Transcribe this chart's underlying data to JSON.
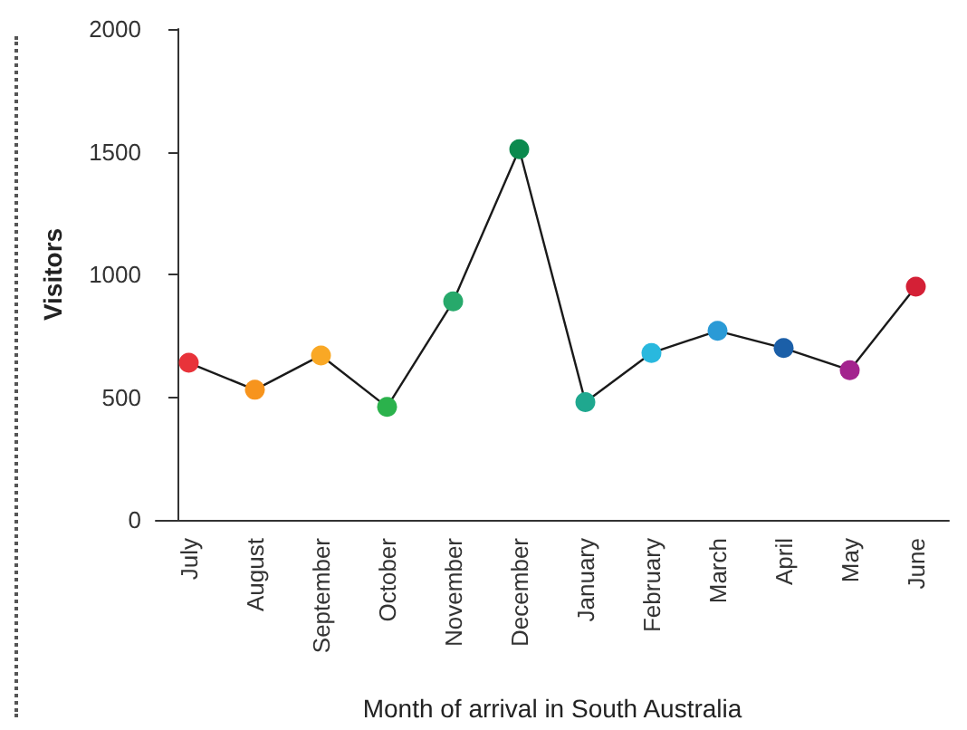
{
  "chart_data": {
    "type": "line",
    "xlabel": "Month of arrival in South Australia",
    "ylabel": "Visitors",
    "categories": [
      "July",
      "August",
      "September",
      "October",
      "November",
      "December",
      "January",
      "February",
      "March",
      "April",
      "May",
      "June"
    ],
    "series": [
      {
        "color": "#1a1a1a",
        "colors": [
          "#e8333a",
          "#f7941d",
          "#f9a825",
          "#2bb24c",
          "#27a96b",
          "#0b8a4e",
          "#1fa88f",
          "#29b8de",
          "#2a9ad6",
          "#1b5fa8",
          "#a3238e",
          "#d42036"
        ],
        "values": [
          640,
          530,
          670,
          460,
          890,
          1510,
          480,
          680,
          770,
          700,
          610,
          950
        ]
      }
    ],
    "ylim": [
      0,
      2000
    ],
    "yticks": [
      0,
      500,
      1000,
      1500,
      2000
    ],
    "grid": false,
    "marker": "circle",
    "line_style": "solid"
  }
}
